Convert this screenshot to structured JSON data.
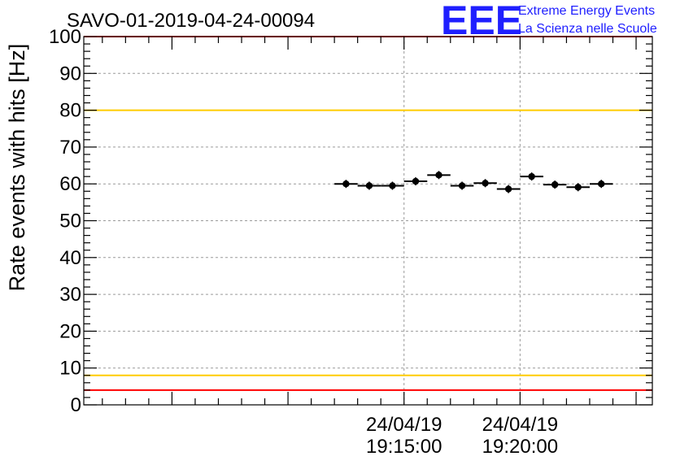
{
  "chart_data": {
    "type": "scatter",
    "title": "SAVO-01-2019-04-24-00094",
    "ylabel": "Rate events with hits [Hz]",
    "xlabel": "",
    "ylim": [
      0,
      100
    ],
    "yticks": [
      0,
      10,
      20,
      30,
      40,
      50,
      60,
      70,
      80,
      90,
      100
    ],
    "ytick_labels": [
      "0",
      "10",
      "20",
      "30",
      "40",
      "50",
      "60",
      "70",
      "80",
      "90",
      "100"
    ],
    "xlim_minutes": [
      -13.8,
      10.7
    ],
    "xticks": [
      {
        "minute": 0,
        "date": "24/04/19",
        "time": "19:15:00"
      },
      {
        "minute": 5,
        "date": "24/04/19",
        "time": "19:20:00"
      }
    ],
    "x_unit": "minutes from 19:15:00",
    "grid": true,
    "series": [
      {
        "name": "rate",
        "bin_width_minutes": 1,
        "x": [
          -2.5,
          -1.5,
          -0.5,
          0.5,
          1.5,
          2.5,
          3.5,
          4.5,
          5.5,
          6.5,
          7.5,
          8.5
        ],
        "values": [
          60.0,
          59.5,
          59.5,
          60.7,
          62.4,
          59.5,
          60.2,
          58.6,
          62.0,
          59.8,
          59.1,
          60.0
        ]
      }
    ],
    "reference_lines": [
      {
        "name": "upper-red-limit",
        "value": 100,
        "color": "#ff0000"
      },
      {
        "name": "upper-yellow-limit",
        "value": 80,
        "color": "#ffcc00"
      },
      {
        "name": "lower-yellow-limit",
        "value": 8,
        "color": "#ffcc00"
      },
      {
        "name": "lower-red-limit",
        "value": 4,
        "color": "#ff0000"
      }
    ],
    "colors": {
      "points": "#000000",
      "logo": "#1f1fff"
    }
  },
  "logo": {
    "mark": "EEE",
    "line1": "Extreme Energy Events",
    "line2": "La Scienza nelle Scuole"
  }
}
